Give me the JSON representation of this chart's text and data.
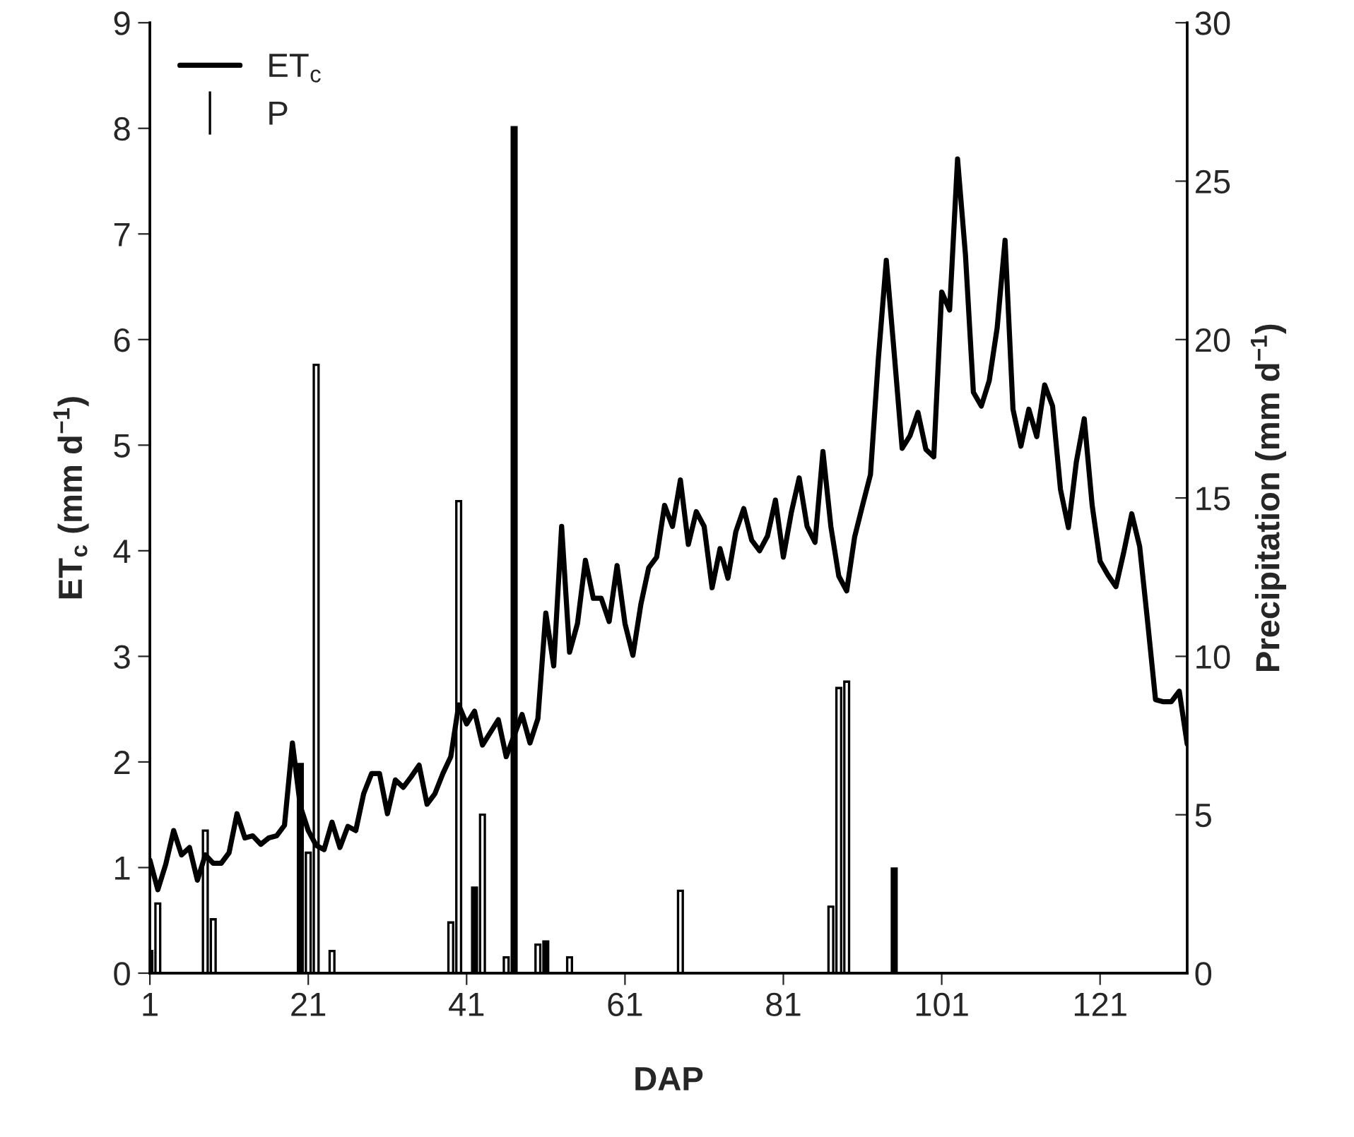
{
  "chart_data": {
    "type": "line",
    "xlabel": "DAP",
    "ylabel": "ET$_{c}$ (mm d$^{−1}$)",
    "y2label": "Precipitation (mm d$^{−1}$)",
    "xlim": [
      1,
      132
    ],
    "xticks": [
      1,
      21,
      41,
      61,
      81,
      101,
      121
    ],
    "ylim": [
      0,
      9
    ],
    "yticks": [
      0,
      1,
      2,
      3,
      4,
      5,
      6,
      7,
      8,
      9
    ],
    "y2lim": [
      0,
      30
    ],
    "y2ticks": [
      0,
      5,
      10,
      15,
      20,
      25,
      30
    ],
    "legend": "top left",
    "grid": false,
    "series": [
      {
        "name": "ET$_{c}$",
        "color": "#000000",
        "line_style": "solid",
        "marker": "none",
        "x": [
          1,
          2,
          3,
          4,
          5,
          6,
          7,
          8,
          9,
          10,
          11,
          12,
          13,
          14,
          15,
          16,
          17,
          18,
          19,
          20,
          21,
          22,
          23,
          24,
          25,
          26,
          27,
          28,
          29,
          30,
          31,
          32,
          33,
          34,
          35,
          36,
          37,
          38,
          39,
          40,
          41,
          42,
          43,
          44,
          45,
          46,
          47,
          48,
          49,
          50,
          51,
          52,
          53,
          54,
          55,
          56,
          57,
          58,
          59,
          60,
          61,
          62,
          63,
          64,
          65,
          66,
          67,
          68,
          69,
          70,
          71,
          72,
          73,
          74,
          75,
          76,
          77,
          78,
          79,
          80,
          81,
          82,
          83,
          84,
          85,
          86,
          87,
          88,
          89,
          90,
          91,
          92,
          93,
          94,
          95,
          96,
          97,
          98,
          99,
          100,
          101,
          102,
          103,
          104,
          105,
          106,
          107,
          108,
          109,
          110,
          111,
          112,
          113,
          114,
          115,
          116,
          117,
          118,
          119,
          120,
          121,
          122,
          123,
          124,
          125,
          126,
          127,
          128,
          129,
          130,
          131,
          132
        ],
        "values": [
          1.07,
          0.79,
          1.03,
          1.35,
          1.12,
          1.19,
          0.88,
          1.12,
          1.04,
          1.04,
          1.14,
          1.51,
          1.28,
          1.3,
          1.22,
          1.28,
          1.3,
          1.4,
          2.18,
          1.58,
          1.35,
          1.21,
          1.17,
          1.43,
          1.19,
          1.39,
          1.35,
          1.7,
          1.89,
          1.89,
          1.51,
          1.83,
          1.76,
          1.86,
          1.97,
          1.6,
          1.7,
          1.89,
          2.05,
          2.54,
          2.36,
          2.48,
          2.16,
          2.28,
          2.4,
          2.05,
          2.25,
          2.45,
          2.18,
          2.41,
          3.41,
          2.91,
          4.23,
          3.04,
          3.31,
          3.91,
          3.55,
          3.55,
          3.33,
          3.86,
          3.31,
          3.01,
          3.49,
          3.84,
          3.94,
          4.43,
          4.23,
          4.67,
          4.06,
          4.37,
          4.23,
          3.65,
          4.02,
          3.74,
          4.18,
          4.4,
          4.1,
          4.0,
          4.14,
          4.48,
          3.94,
          4.36,
          4.69,
          4.23,
          4.08,
          4.94,
          4.23,
          3.76,
          3.62,
          4.13,
          4.43,
          4.72,
          5.82,
          6.75,
          5.87,
          4.97,
          5.09,
          5.31,
          4.96,
          4.89,
          6.45,
          6.28,
          7.71,
          6.8,
          5.5,
          5.37,
          5.61,
          6.11,
          6.94,
          5.34,
          4.99,
          5.34,
          5.08,
          5.57,
          5.37,
          4.58,
          4.22,
          4.84,
          5.25,
          4.43,
          3.9,
          3.77,
          3.66,
          3.99,
          4.35,
          4.04,
          3.33,
          2.59,
          2.57,
          2.57,
          2.67,
          2.17
        ]
      },
      {
        "name": "P",
        "type": "bar",
        "axis": "y2",
        "color": "#000000",
        "x": [
          1,
          2,
          8,
          9,
          20,
          21,
          22,
          24,
          39,
          40,
          42,
          43,
          46,
          47,
          50,
          51,
          54,
          68,
          87,
          88,
          89,
          95
        ],
        "values": [
          0.7,
          2.2,
          4.5,
          1.7,
          6.6,
          3.8,
          19.2,
          0.7,
          1.6,
          14.9,
          2.7,
          5.0,
          0.5,
          26.7,
          0.9,
          1.0,
          0.5,
          2.6,
          2.1,
          9.0,
          9.2,
          3.3
        ],
        "colors": [
          "#ffffff",
          "#ffffff",
          "#ffffff",
          "#ffffff",
          "#000000",
          "#ffffff",
          "#ffffff",
          "#ffffff",
          "#ffffff",
          "#ffffff",
          "#000000",
          "#ffffff",
          "#ffffff",
          "#000000",
          "#ffffff",
          "#000000",
          "#ffffff",
          "#ffffff",
          "#ffffff",
          "#ffffff",
          "#ffffff",
          "#000000"
        ]
      }
    ]
  }
}
